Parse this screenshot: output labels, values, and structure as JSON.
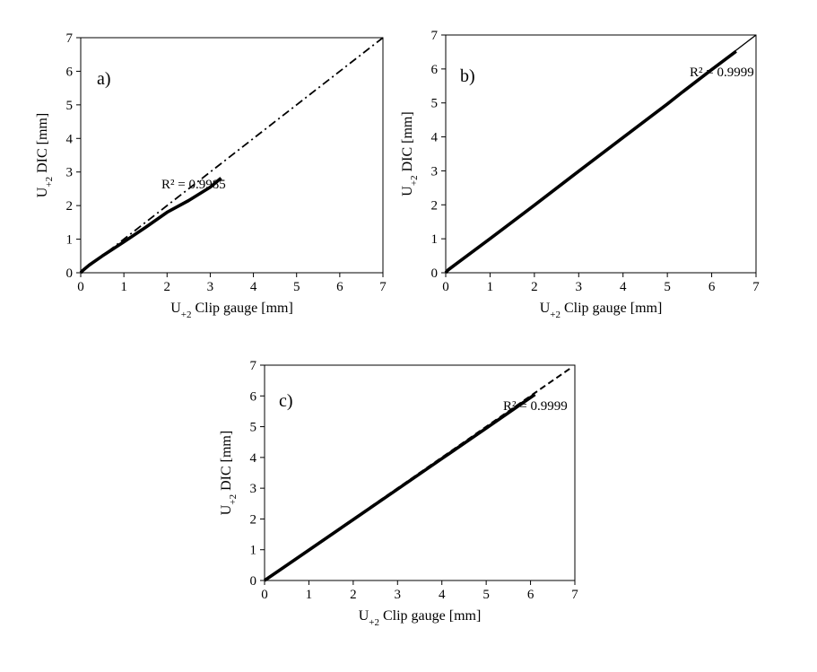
{
  "chart_data": [
    {
      "type": "scatter",
      "panel_label": "a)",
      "annotation": "R² = 0.9985",
      "xlabel": "U+2 Clip gauge [mm]",
      "ylabel": "U+2 DIC [mm]",
      "xlim": [
        0,
        7
      ],
      "ylim": [
        0,
        7
      ],
      "xticks": [
        "0",
        "1",
        "2",
        "3",
        "4",
        "5",
        "6",
        "7"
      ],
      "yticks": [
        "0",
        "1",
        "2",
        "3",
        "4",
        "5",
        "6",
        "7"
      ],
      "grid": false,
      "series": [
        {
          "style": "thick-solid",
          "x": [
            0,
            0.05,
            0.2,
            0.5,
            1.0,
            1.5,
            2.0,
            2.5,
            3.0,
            3.25
          ],
          "y": [
            0,
            0.07,
            0.23,
            0.5,
            0.92,
            1.35,
            1.8,
            2.15,
            2.55,
            2.82
          ]
        },
        {
          "style": "dash-dot",
          "x": [
            0,
            7
          ],
          "y": [
            0,
            7
          ]
        }
      ]
    },
    {
      "type": "scatter",
      "panel_label": "b)",
      "annotation": "R² = 0.9999",
      "xlabel": "U+2 Clip gauge [mm]",
      "ylabel": "U+2 DIC [mm]",
      "xlim": [
        0,
        7
      ],
      "ylim": [
        0,
        7
      ],
      "xticks": [
        "0",
        "1",
        "2",
        "3",
        "4",
        "5",
        "6",
        "7"
      ],
      "yticks": [
        "0",
        "1",
        "2",
        "3",
        "4",
        "5",
        "6",
        "7"
      ],
      "grid": false,
      "series": [
        {
          "style": "thick-solid",
          "x": [
            0,
            0.05,
            1.0,
            2.0,
            3.0,
            4.0,
            5.0,
            5.3,
            6.0,
            6.55
          ],
          "y": [
            0,
            0.08,
            1.0,
            1.99,
            2.99,
            3.98,
            4.97,
            5.28,
            5.98,
            6.52
          ]
        },
        {
          "style": "thin-solid",
          "x": [
            0,
            7
          ],
          "y": [
            0,
            7
          ]
        }
      ]
    },
    {
      "type": "scatter",
      "panel_label": "c)",
      "annotation": "R² = 0.9999",
      "xlabel": "U+2 Clip gauge [mm]",
      "ylabel": "U+2 DIC [mm]",
      "xlim": [
        0,
        7
      ],
      "ylim": [
        0,
        7
      ],
      "xticks": [
        "0",
        "1",
        "2",
        "3",
        "4",
        "5",
        "6",
        "7"
      ],
      "yticks": [
        "0",
        "1",
        "2",
        "3",
        "4",
        "5",
        "6",
        "7"
      ],
      "grid": false,
      "series": [
        {
          "style": "thick-solid",
          "x": [
            0,
            0.05,
            1.0,
            2.0,
            3.0,
            4.0,
            5.0,
            5.5,
            6.1
          ],
          "y": [
            0,
            0.05,
            0.99,
            1.98,
            2.97,
            3.96,
            4.95,
            5.45,
            6.05
          ]
        },
        {
          "style": "dashed",
          "x": [
            0,
            6.9
          ],
          "y": [
            0,
            6.9
          ]
        }
      ]
    }
  ]
}
